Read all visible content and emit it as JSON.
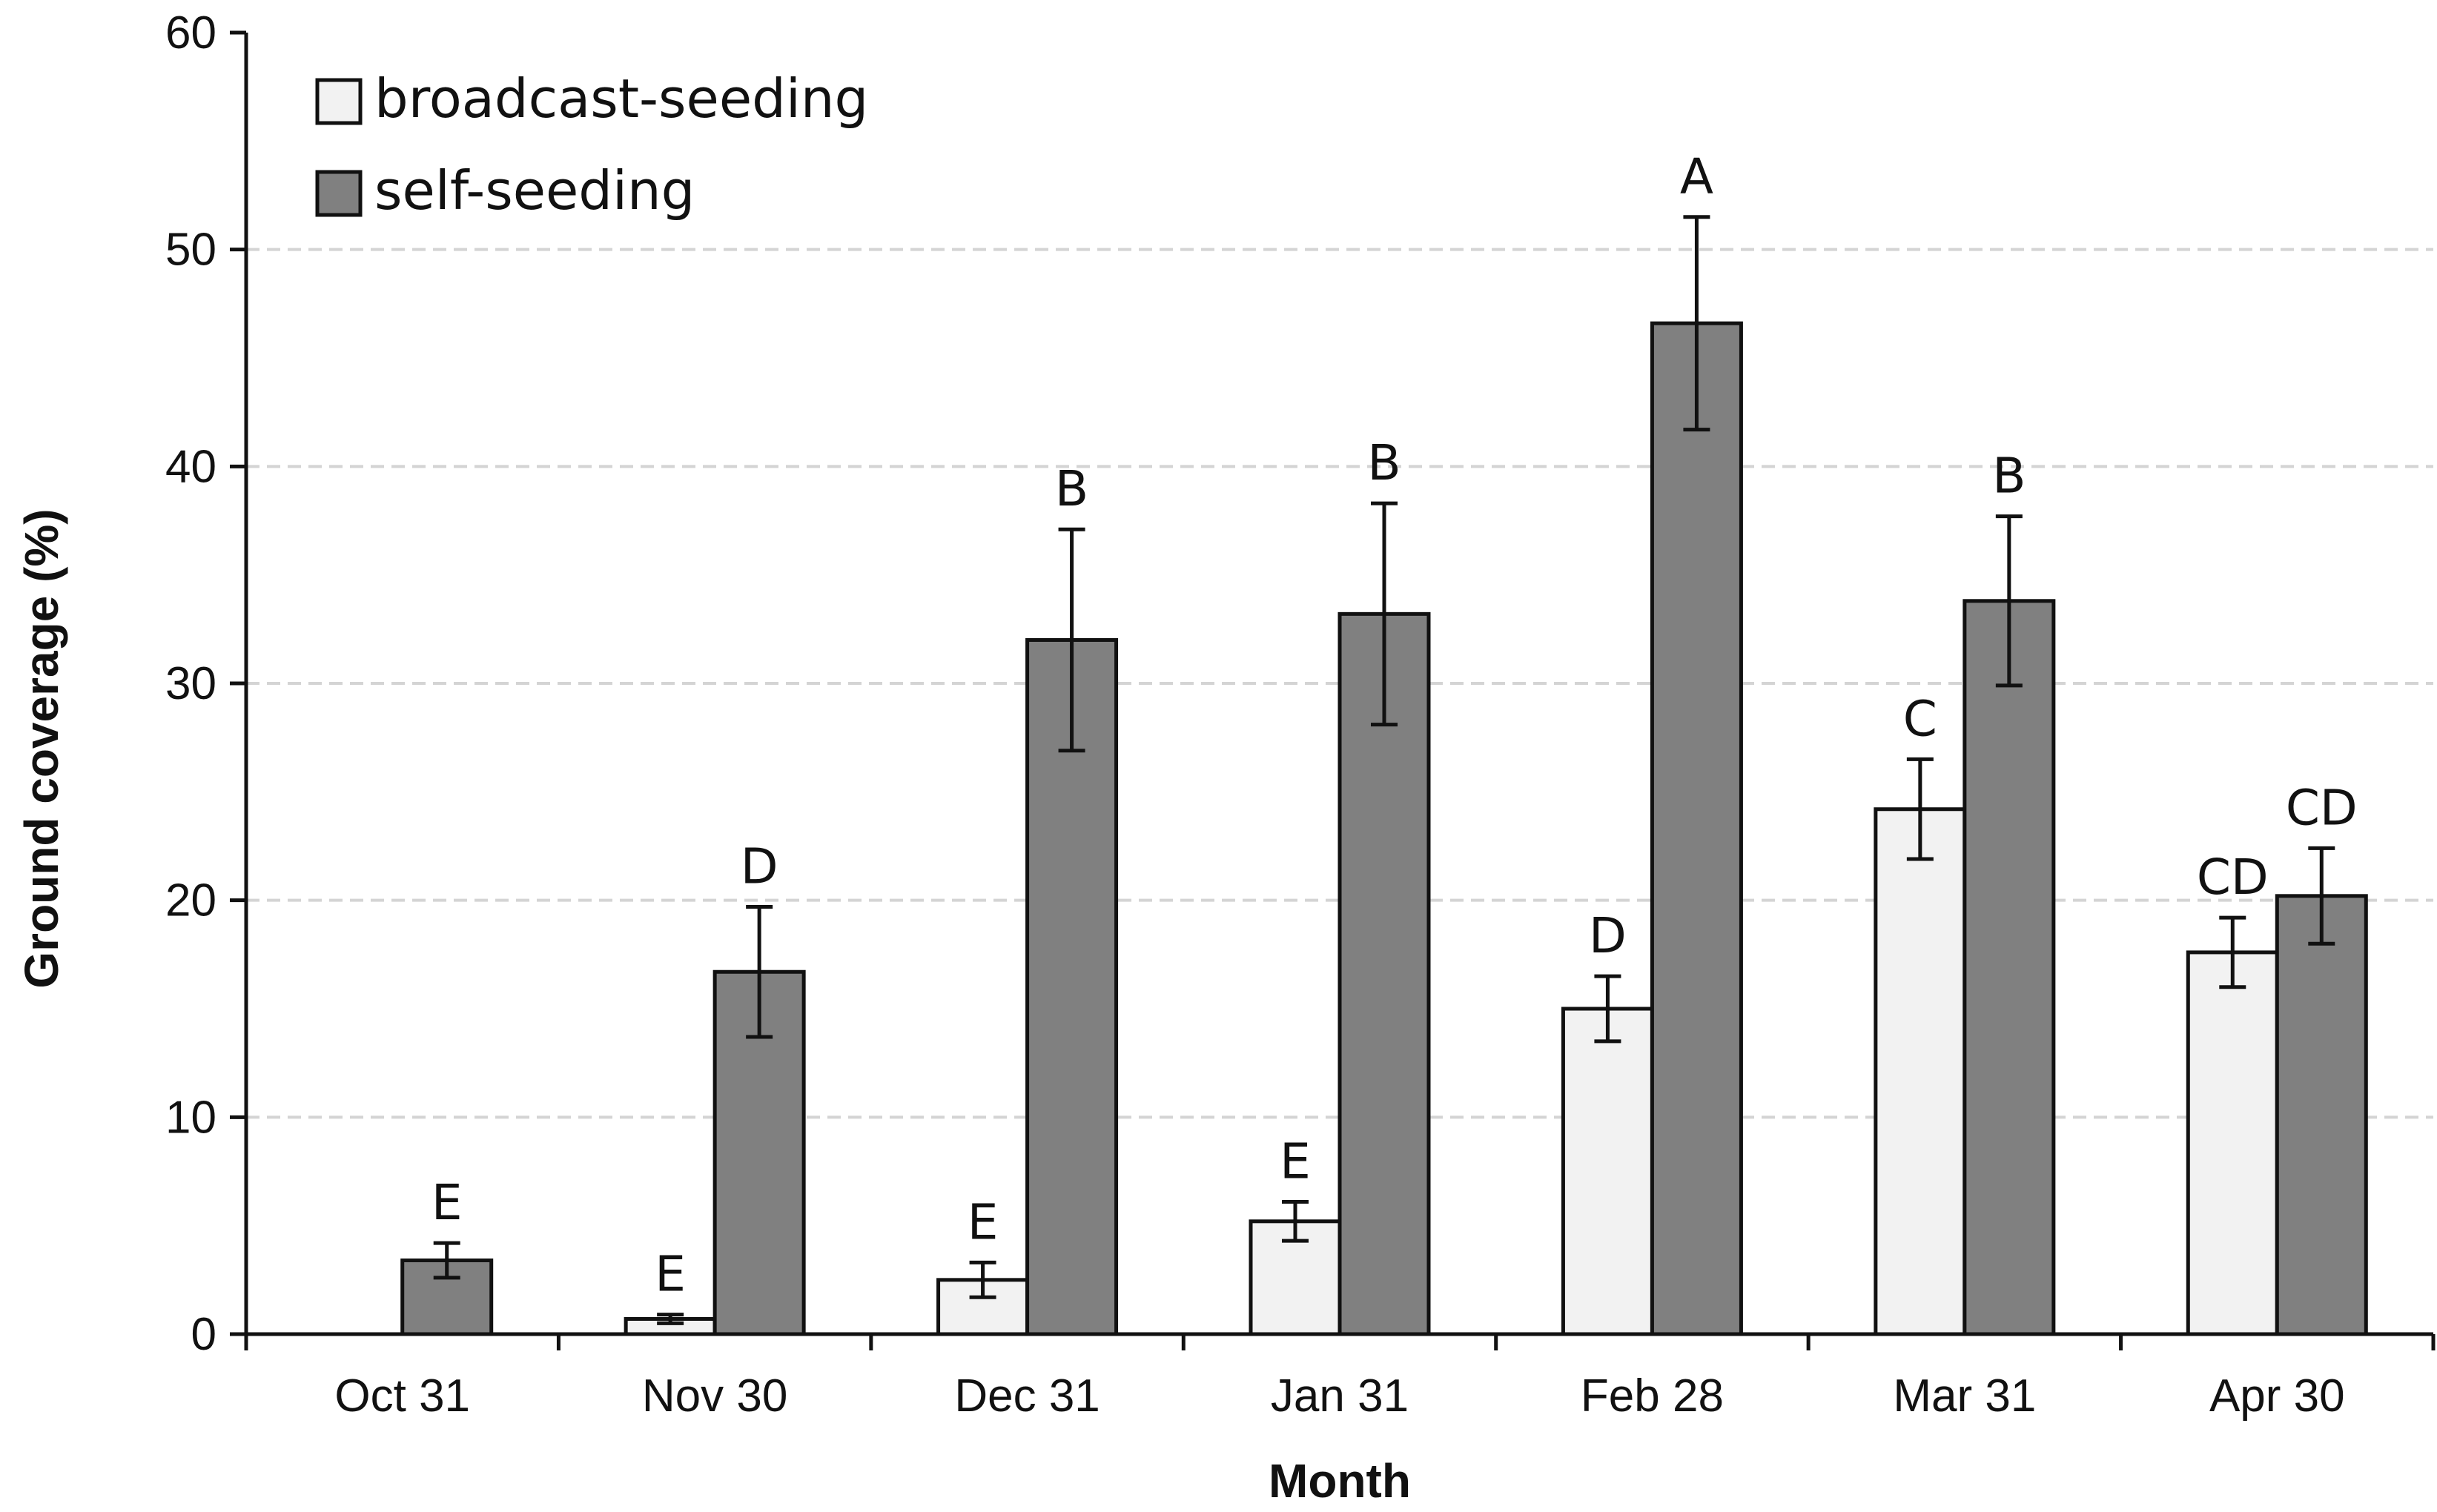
{
  "chart_data": {
    "type": "bar",
    "title": "",
    "xlabel": "Month",
    "ylabel": "Ground coverage (%)",
    "ylim": [
      0,
      60
    ],
    "yticks": [
      0,
      10,
      20,
      30,
      40,
      50,
      60
    ],
    "grid": true,
    "legend_position": "top-left",
    "categories": [
      "Oct 31",
      "Nov 30",
      "Dec 31",
      "Jan 31",
      "Feb 28",
      "Mar 31",
      "Apr 30"
    ],
    "series": [
      {
        "name": "broadcast-seeding",
        "color": "#f2f2f2",
        "values": [
          0,
          0.7,
          2.5,
          5.2,
          15.0,
          24.2,
          17.6
        ],
        "errors": [
          0,
          0.2,
          0.8,
          0.9,
          1.5,
          2.3,
          1.6
        ],
        "labels": [
          "",
          "E",
          "E",
          "E",
          "D",
          "C",
          "CD"
        ]
      },
      {
        "name": "self-seeding",
        "color": "#808080",
        "values": [
          3.4,
          16.7,
          32.0,
          33.2,
          46.6,
          33.8,
          20.2
        ],
        "errors": [
          0.8,
          3.0,
          5.1,
          5.1,
          4.9,
          3.9,
          2.2
        ],
        "labels": [
          "E",
          "D",
          "B",
          "B",
          "A",
          "B",
          "CD"
        ]
      }
    ]
  }
}
